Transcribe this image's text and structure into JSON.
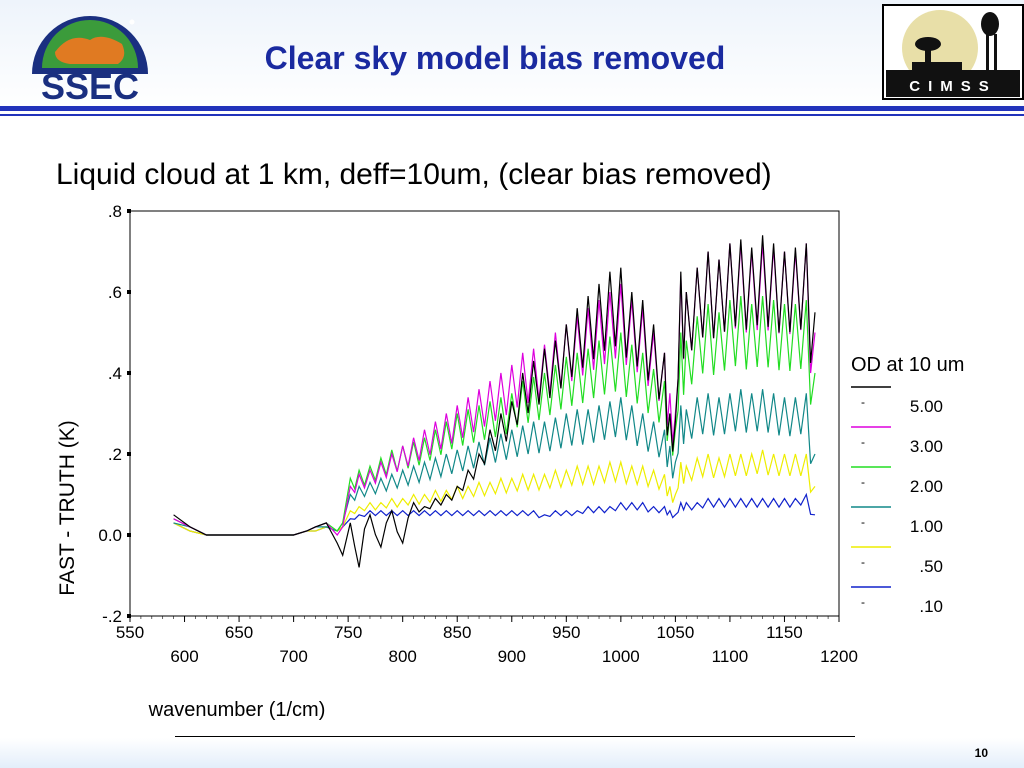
{
  "slide": {
    "title": "Clear sky model bias removed",
    "subtitle": "Liquid cloud at 1 km, deff=10um, (clear bias removed)",
    "page_number": "10",
    "logo_left": "SSEC",
    "logo_right": "CIMSS"
  },
  "colors": {
    "title": "#1a2aa0",
    "rule": "#2233bb"
  },
  "chart_data": {
    "type": "line",
    "xlabel": "wavenumber (1/cm)",
    "ylabel": "FAST - TRUTH (K)",
    "xlim": [
      550,
      1200
    ],
    "ylim": [
      -0.2,
      0.8
    ],
    "x_ticks_upper": [
      "550",
      "650",
      "750",
      "850",
      "950",
      "1050",
      "1150"
    ],
    "x_ticks_lower": [
      "600",
      "700",
      "800",
      "900",
      "1000",
      "1100",
      "1200"
    ],
    "y_ticks": [
      {
        "value": 0.8,
        "label": ".8"
      },
      {
        "value": 0.6,
        "label": ".6"
      },
      {
        "value": 0.4,
        "label": ".4"
      },
      {
        "value": 0.2,
        "label": ".2"
      },
      {
        "value": 0.0,
        "label": "0.0"
      },
      {
        "value": -0.2,
        "label": "-.2"
      }
    ],
    "legend": {
      "title": "OD at 10 um",
      "position": "right",
      "marker": "-"
    },
    "series": [
      {
        "name": "5.00",
        "color": "#000000",
        "x": [
          590,
          605,
          620,
          640,
          680,
          700,
          712,
          720,
          730,
          740,
          745,
          752,
          760,
          770,
          780,
          790,
          800,
          810,
          820,
          830,
          840,
          850,
          860,
          870,
          880,
          890,
          900,
          910,
          920,
          930,
          940,
          950,
          960,
          970,
          980,
          990,
          1000,
          1010,
          1020,
          1030,
          1040,
          1045,
          1050,
          1055,
          1060,
          1070,
          1080,
          1090,
          1100,
          1110,
          1120,
          1130,
          1140,
          1150,
          1160,
          1170,
          1178
        ],
        "y": [
          0.05,
          0.02,
          0.0,
          0.0,
          0.0,
          0.0,
          0.01,
          0.02,
          0.03,
          -0.02,
          -0.05,
          0.03,
          -0.08,
          0.05,
          -0.03,
          0.06,
          -0.02,
          0.08,
          0.07,
          0.09,
          0.1,
          0.12,
          0.16,
          0.2,
          0.26,
          0.3,
          0.33,
          0.4,
          0.43,
          0.46,
          0.48,
          0.52,
          0.56,
          0.59,
          0.62,
          0.65,
          0.66,
          0.6,
          0.58,
          0.52,
          0.45,
          0.3,
          0.28,
          0.65,
          0.6,
          0.66,
          0.7,
          0.68,
          0.72,
          0.73,
          0.71,
          0.74,
          0.72,
          0.7,
          0.71,
          0.72,
          0.55
        ]
      },
      {
        "name": "3.00",
        "color": "#dd00dd",
        "x": [
          590,
          605,
          620,
          640,
          680,
          700,
          712,
          720,
          730,
          740,
          745,
          752,
          760,
          770,
          780,
          790,
          800,
          810,
          820,
          830,
          840,
          850,
          860,
          870,
          880,
          890,
          900,
          910,
          920,
          930,
          940,
          950,
          960,
          970,
          980,
          990,
          1000,
          1010,
          1020,
          1030,
          1040,
          1045,
          1050,
          1055,
          1060,
          1070,
          1080,
          1090,
          1100,
          1110,
          1120,
          1130,
          1140,
          1150,
          1160,
          1170,
          1178
        ],
        "y": [
          0.04,
          0.02,
          0.0,
          0.0,
          0.0,
          0.0,
          0.01,
          0.02,
          0.03,
          0.0,
          0.02,
          0.12,
          0.15,
          0.16,
          0.18,
          0.2,
          0.22,
          0.24,
          0.26,
          0.28,
          0.3,
          0.32,
          0.34,
          0.36,
          0.38,
          0.4,
          0.42,
          0.45,
          0.46,
          0.47,
          0.5,
          0.52,
          0.54,
          0.56,
          0.58,
          0.6,
          0.62,
          0.58,
          0.56,
          0.5,
          0.45,
          0.35,
          0.3,
          0.64,
          0.6,
          0.66,
          0.7,
          0.68,
          0.72,
          0.72,
          0.7,
          0.72,
          0.71,
          0.7,
          0.7,
          0.72,
          0.5
        ]
      },
      {
        "name": "2.00",
        "color": "#22dd22",
        "x": [
          590,
          605,
          620,
          640,
          680,
          700,
          712,
          720,
          730,
          740,
          745,
          752,
          760,
          770,
          780,
          790,
          800,
          810,
          820,
          830,
          840,
          850,
          860,
          870,
          880,
          890,
          900,
          910,
          920,
          930,
          940,
          950,
          960,
          970,
          980,
          990,
          1000,
          1010,
          1020,
          1030,
          1040,
          1045,
          1050,
          1055,
          1060,
          1070,
          1080,
          1090,
          1100,
          1110,
          1120,
          1130,
          1140,
          1150,
          1160,
          1170,
          1178
        ],
        "y": [
          0.04,
          0.02,
          0.0,
          0.0,
          0.0,
          0.0,
          0.01,
          0.02,
          0.03,
          0.01,
          0.03,
          0.14,
          0.16,
          0.17,
          0.19,
          0.21,
          0.22,
          0.23,
          0.24,
          0.26,
          0.28,
          0.3,
          0.31,
          0.32,
          0.33,
          0.34,
          0.35,
          0.38,
          0.39,
          0.4,
          0.42,
          0.44,
          0.45,
          0.46,
          0.48,
          0.49,
          0.5,
          0.47,
          0.45,
          0.41,
          0.38,
          0.3,
          0.26,
          0.5,
          0.48,
          0.54,
          0.57,
          0.55,
          0.58,
          0.59,
          0.57,
          0.59,
          0.58,
          0.57,
          0.57,
          0.58,
          0.4
        ]
      },
      {
        "name": "1.00",
        "color": "#118888",
        "x": [
          590,
          605,
          620,
          640,
          680,
          700,
          712,
          720,
          730,
          740,
          745,
          752,
          760,
          770,
          780,
          790,
          800,
          810,
          820,
          830,
          840,
          850,
          860,
          870,
          880,
          890,
          900,
          910,
          920,
          930,
          940,
          950,
          960,
          970,
          980,
          990,
          1000,
          1010,
          1020,
          1030,
          1040,
          1045,
          1050,
          1055,
          1060,
          1070,
          1080,
          1090,
          1100,
          1110,
          1120,
          1130,
          1140,
          1150,
          1160,
          1170,
          1178
        ],
        "y": [
          0.03,
          0.02,
          0.0,
          0.0,
          0.0,
          0.0,
          0.01,
          0.02,
          0.02,
          0.01,
          0.03,
          0.1,
          0.12,
          0.13,
          0.14,
          0.15,
          0.16,
          0.17,
          0.18,
          0.19,
          0.2,
          0.21,
          0.22,
          0.23,
          0.24,
          0.25,
          0.26,
          0.27,
          0.28,
          0.28,
          0.29,
          0.3,
          0.31,
          0.31,
          0.32,
          0.33,
          0.34,
          0.32,
          0.3,
          0.28,
          0.26,
          0.22,
          0.18,
          0.32,
          0.31,
          0.34,
          0.35,
          0.34,
          0.35,
          0.36,
          0.35,
          0.36,
          0.35,
          0.34,
          0.34,
          0.35,
          0.2
        ]
      },
      {
        "name": ".50",
        "color": "#eeee00",
        "x": [
          590,
          605,
          620,
          640,
          680,
          700,
          712,
          720,
          730,
          740,
          745,
          752,
          760,
          770,
          780,
          790,
          800,
          810,
          820,
          830,
          840,
          850,
          860,
          870,
          880,
          890,
          900,
          910,
          920,
          930,
          940,
          950,
          960,
          970,
          980,
          990,
          1000,
          1010,
          1020,
          1030,
          1040,
          1045,
          1050,
          1055,
          1060,
          1070,
          1080,
          1090,
          1100,
          1110,
          1120,
          1130,
          1140,
          1150,
          1160,
          1170,
          1178
        ],
        "y": [
          0.03,
          0.01,
          0.0,
          0.0,
          0.0,
          0.0,
          0.01,
          0.01,
          0.02,
          0.01,
          0.02,
          0.06,
          0.07,
          0.08,
          0.08,
          0.09,
          0.09,
          0.1,
          0.1,
          0.11,
          0.11,
          0.12,
          0.12,
          0.13,
          0.13,
          0.14,
          0.14,
          0.15,
          0.15,
          0.15,
          0.16,
          0.16,
          0.17,
          0.17,
          0.17,
          0.18,
          0.18,
          0.17,
          0.17,
          0.16,
          0.15,
          0.12,
          0.1,
          0.18,
          0.17,
          0.19,
          0.2,
          0.19,
          0.2,
          0.2,
          0.2,
          0.21,
          0.2,
          0.2,
          0.2,
          0.2,
          0.12
        ]
      },
      {
        "name": ".10",
        "color": "#1122cc",
        "x": [
          590,
          605,
          620,
          640,
          680,
          700,
          712,
          720,
          730,
          740,
          745,
          752,
          760,
          770,
          780,
          790,
          800,
          810,
          820,
          830,
          840,
          850,
          860,
          870,
          880,
          890,
          900,
          910,
          920,
          930,
          940,
          950,
          960,
          970,
          980,
          990,
          1000,
          1010,
          1020,
          1030,
          1040,
          1045,
          1050,
          1055,
          1060,
          1070,
          1080,
          1090,
          1100,
          1110,
          1120,
          1130,
          1140,
          1150,
          1160,
          1170,
          1178
        ],
        "y": [
          0.03,
          0.01,
          0.0,
          0.0,
          0.0,
          0.0,
          0.01,
          0.01,
          0.02,
          0.01,
          0.02,
          0.04,
          0.05,
          0.06,
          0.06,
          0.06,
          0.06,
          0.06,
          0.06,
          0.06,
          0.06,
          0.06,
          0.06,
          0.06,
          0.06,
          0.06,
          0.06,
          0.06,
          0.06,
          0.05,
          0.06,
          0.06,
          0.06,
          0.07,
          0.07,
          0.07,
          0.08,
          0.08,
          0.08,
          0.07,
          0.07,
          0.06,
          0.05,
          0.08,
          0.08,
          0.08,
          0.09,
          0.09,
          0.09,
          0.09,
          0.09,
          0.09,
          0.09,
          0.09,
          0.09,
          0.1,
          0.05
        ]
      }
    ]
  }
}
